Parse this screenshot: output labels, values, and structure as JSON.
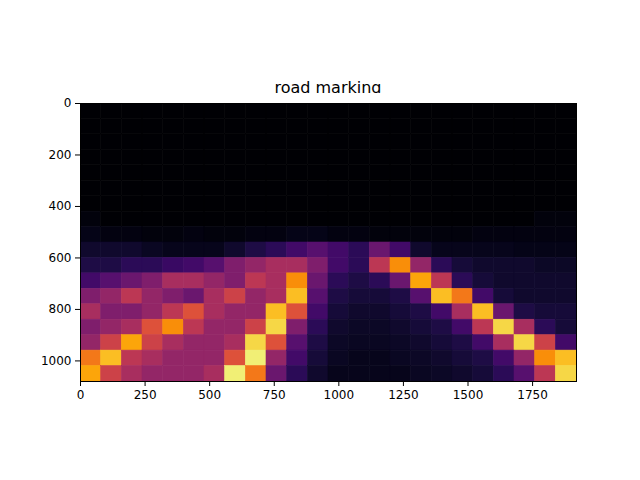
{
  "chart_data": {
    "type": "heatmap",
    "title": "road marking",
    "color": "inferno",
    "xlim": [
      0,
      1920
    ],
    "ylim": [
      1080,
      0
    ],
    "xticks": [
      0,
      250,
      500,
      750,
      1000,
      1250,
      1500,
      1750
    ],
    "yticks": [
      0,
      200,
      400,
      600,
      800,
      1000
    ],
    "extent": [
      0,
      1920,
      0,
      1080
    ],
    "zlim": [
      0,
      1
    ],
    "z": [
      [
        0,
        0,
        0,
        0,
        0,
        0,
        0,
        0,
        0,
        0,
        0,
        0,
        0,
        0,
        0,
        0,
        0,
        0,
        0,
        0,
        0,
        0,
        0,
        0
      ],
      [
        0,
        0,
        0,
        0,
        0,
        0,
        0,
        0,
        0,
        0,
        0,
        0,
        0,
        0,
        0,
        0,
        0,
        0,
        0,
        0,
        0,
        0,
        0,
        0
      ],
      [
        0,
        0,
        0,
        0,
        0,
        0,
        0,
        0,
        0,
        0,
        0,
        0,
        0,
        0,
        0,
        0,
        0,
        0,
        0,
        0,
        0,
        0,
        0,
        0
      ],
      [
        0,
        0,
        0,
        0,
        0,
        0,
        0,
        0,
        0,
        0,
        0,
        0,
        0,
        0,
        0,
        0,
        0,
        0,
        0,
        0,
        0,
        0,
        0,
        0
      ],
      [
        0,
        0,
        0,
        0,
        0,
        0,
        0,
        0,
        0,
        0,
        0,
        0,
        0,
        0,
        0,
        0,
        0,
        0,
        0,
        0,
        0,
        0,
        0,
        0
      ],
      [
        0,
        0,
        0,
        0,
        0,
        0,
        0,
        0,
        0,
        0,
        0,
        0,
        0,
        0,
        0,
        0,
        0,
        0,
        0,
        0,
        0,
        0,
        0,
        0
      ],
      [
        0,
        0,
        0,
        0,
        0,
        0,
        0,
        0,
        0,
        0,
        0,
        0,
        0,
        0,
        0,
        0,
        0,
        0,
        0,
        0,
        0,
        0,
        0,
        0
      ],
      [
        0.02,
        0,
        0,
        0,
        0,
        0,
        0,
        0,
        0,
        0,
        0,
        0,
        0,
        0,
        0,
        0,
        0,
        0,
        0,
        0,
        0,
        0,
        0.02,
        0.02
      ],
      [
        0.04,
        0.03,
        0.03,
        0.02,
        0.02,
        0.03,
        0.02,
        0.02,
        0.03,
        0.03,
        0.04,
        0.04,
        0.03,
        0.03,
        0.02,
        0.02,
        0.02,
        0.02,
        0.02,
        0.03,
        0.03,
        0.03,
        0.03,
        0.03
      ],
      [
        0.08,
        0.08,
        0.08,
        0.06,
        0.05,
        0.05,
        0.05,
        0.08,
        0.12,
        0.15,
        0.2,
        0.25,
        0.2,
        0.15,
        0.3,
        0.2,
        0.08,
        0.05,
        0.05,
        0.05,
        0.05,
        0.04,
        0.04,
        0.04
      ],
      [
        0.12,
        0.12,
        0.15,
        0.15,
        0.18,
        0.2,
        0.25,
        0.35,
        0.4,
        0.45,
        0.45,
        0.35,
        0.2,
        0.15,
        0.5,
        0.75,
        0.4,
        0.15,
        0.1,
        0.08,
        0.08,
        0.08,
        0.07,
        0.07
      ],
      [
        0.2,
        0.25,
        0.3,
        0.35,
        0.45,
        0.45,
        0.4,
        0.35,
        0.5,
        0.45,
        0.75,
        0.3,
        0.15,
        0.12,
        0.15,
        0.3,
        0.8,
        0.5,
        0.15,
        0.1,
        0.08,
        0.08,
        0.08,
        0.08
      ],
      [
        0.35,
        0.4,
        0.5,
        0.4,
        0.35,
        0.3,
        0.45,
        0.55,
        0.4,
        0.45,
        0.85,
        0.25,
        0.12,
        0.1,
        0.1,
        0.12,
        0.25,
        0.85,
        0.7,
        0.2,
        0.1,
        0.08,
        0.08,
        0.08
      ],
      [
        0.45,
        0.35,
        0.35,
        0.4,
        0.5,
        0.6,
        0.45,
        0.4,
        0.4,
        0.85,
        0.6,
        0.2,
        0.1,
        0.08,
        0.08,
        0.1,
        0.12,
        0.2,
        0.45,
        0.85,
        0.3,
        0.12,
        0.1,
        0.1
      ],
      [
        0.35,
        0.4,
        0.45,
        0.6,
        0.75,
        0.5,
        0.4,
        0.4,
        0.55,
        0.9,
        0.35,
        0.15,
        0.08,
        0.07,
        0.07,
        0.08,
        0.1,
        0.12,
        0.2,
        0.5,
        0.9,
        0.45,
        0.15,
        0.1
      ],
      [
        0.4,
        0.55,
        0.8,
        0.55,
        0.45,
        0.4,
        0.4,
        0.45,
        0.9,
        0.6,
        0.25,
        0.12,
        0.07,
        0.06,
        0.06,
        0.07,
        0.08,
        0.1,
        0.12,
        0.2,
        0.45,
        0.9,
        0.55,
        0.2
      ],
      [
        0.7,
        0.85,
        0.5,
        0.45,
        0.4,
        0.4,
        0.4,
        0.6,
        0.95,
        0.4,
        0.2,
        0.1,
        0.06,
        0.05,
        0.05,
        0.06,
        0.07,
        0.08,
        0.1,
        0.12,
        0.2,
        0.4,
        0.75,
        0.85
      ],
      [
        0.8,
        0.55,
        0.45,
        0.4,
        0.4,
        0.4,
        0.45,
        0.95,
        0.7,
        0.3,
        0.15,
        0.08,
        0.05,
        0.05,
        0.05,
        0.05,
        0.06,
        0.07,
        0.08,
        0.1,
        0.15,
        0.25,
        0.5,
        0.9
      ]
    ]
  }
}
